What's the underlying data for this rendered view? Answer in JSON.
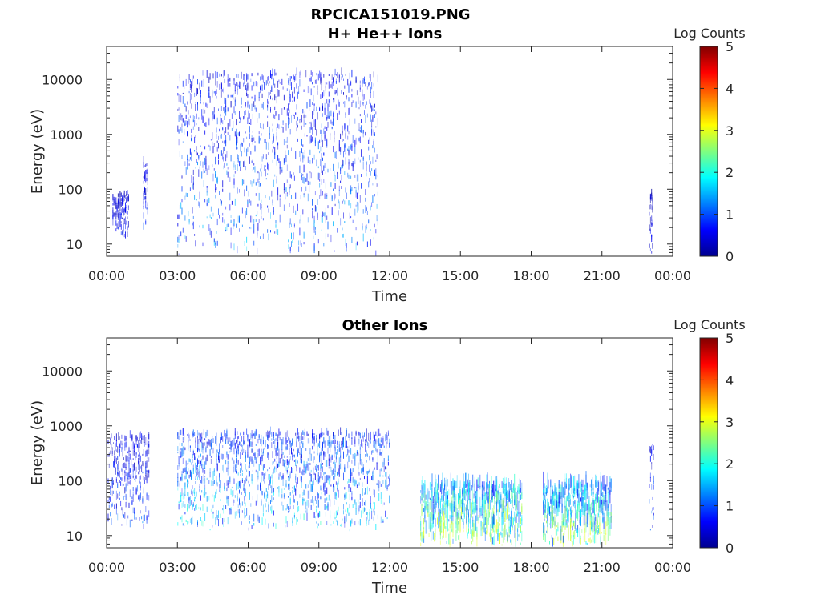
{
  "figure_title": "RPCICA151019.PNG",
  "chart_data": [
    {
      "type": "heatmap",
      "title": "H+ He++ Ions",
      "xlabel": "Time",
      "ylabel": "Energy (eV)",
      "x_ticks": [
        "00:00",
        "03:00",
        "06:00",
        "09:00",
        "12:00",
        "15:00",
        "18:00",
        "21:00",
        "00:00"
      ],
      "xlim_hours": [
        0,
        24
      ],
      "y_ticks": [
        10,
        100,
        1000,
        10000
      ],
      "y_scale": "log",
      "ylim_ev": [
        6,
        40000
      ],
      "colorbar": {
        "label": "Log Counts",
        "ticks": [
          0,
          1,
          2,
          3,
          4,
          5
        ],
        "range": [
          0,
          5
        ],
        "colormap": "jet"
      },
      "segments": [
        {
          "start_h": 0.25,
          "end_h": 0.95,
          "e_low": 12,
          "e_high": 80,
          "intensity": 0.6
        },
        {
          "start_h": 1.55,
          "end_h": 1.75,
          "e_low": 15,
          "e_high": 300,
          "intensity": 0.6
        },
        {
          "start_h": 3.0,
          "end_h": 11.5,
          "e_low": 6,
          "e_high": 12000,
          "intensity": 1.0
        },
        {
          "start_h": 23.0,
          "end_h": 23.15,
          "e_low": 6,
          "e_high": 80,
          "intensity": 0.5
        }
      ]
    },
    {
      "type": "heatmap",
      "title": "Other Ions",
      "xlabel": "Time",
      "ylabel": "Energy (eV)",
      "x_ticks": [
        "00:00",
        "03:00",
        "06:00",
        "09:00",
        "12:00",
        "15:00",
        "18:00",
        "21:00",
        "00:00"
      ],
      "xlim_hours": [
        0,
        24
      ],
      "y_ticks": [
        10,
        100,
        1000,
        10000
      ],
      "y_scale": "log",
      "ylim_ev": [
        6,
        40000
      ],
      "colorbar": {
        "label": "Log Counts",
        "ticks": [
          0,
          1,
          2,
          3,
          4,
          5
        ],
        "range": [
          0,
          5
        ],
        "colormap": "jet"
      },
      "segments": [
        {
          "start_h": 0.05,
          "end_h": 1.8,
          "e_low": 12,
          "e_high": 600,
          "intensity": 0.8
        },
        {
          "start_h": 3.0,
          "end_h": 12.0,
          "e_low": 12,
          "e_high": 700,
          "intensity": 1.3
        },
        {
          "start_h": 13.3,
          "end_h": 17.6,
          "e_low": 6,
          "e_high": 80,
          "intensity": 2.3
        },
        {
          "start_h": 18.5,
          "end_h": 21.4,
          "e_low": 6,
          "e_high": 80,
          "intensity": 2.0
        },
        {
          "start_h": 23.0,
          "end_h": 23.2,
          "e_low": 12,
          "e_high": 500,
          "intensity": 0.8
        }
      ]
    }
  ]
}
